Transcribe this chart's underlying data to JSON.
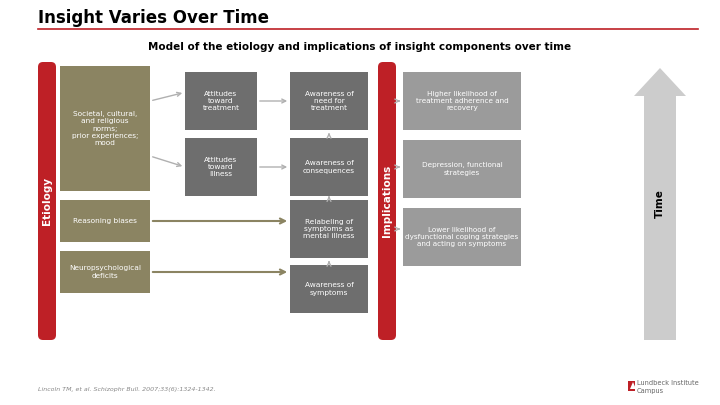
{
  "title": "Insight Varies Over Time",
  "subtitle": "Model of the etiology and implications of insight components over time",
  "bg_color": "#ffffff",
  "red_color": "#be2026",
  "olive_color": "#8b8462",
  "gray_dark": "#6e6e6e",
  "gray_light": "#9b9b9b",
  "arrow_gray": "#b0b0b0",
  "arrow_olive": "#8b8462",
  "white": "#ffffff",
  "citation": "Lincoln TM, et al. Schizophr Bull. 2007;33(6):1324-1342.",
  "etiology_label": "Etiology",
  "implications_label": "Implications",
  "time_label": "Time",
  "box1_text": "Societal, cultural,\nand religious\nnorms;\nprior experiences;\nmood",
  "box2_text": "Reasoning biases",
  "box3_text": "Neuropsychological\ndeficits",
  "box4_text": "Attitudes\ntoward\ntreatment",
  "box5_text": "Attitudes\ntoward\nillness",
  "box6_text": "Relabeling of\nsymptoms as\nmental illness",
  "box7_text": "Awareness of\nsymptoms",
  "box8_text": "Awareness of\nneed for\ntreatment",
  "box9_text": "Awareness of\nconsequences",
  "box10_text": "Higher likelihood of\ntreatment adherence and\nrecovery",
  "box11_text": "Depression, functional\nstrategies",
  "box12_text": "Lower likelihood of\ndysfunctional coping strategies\nand acting on symptoms"
}
